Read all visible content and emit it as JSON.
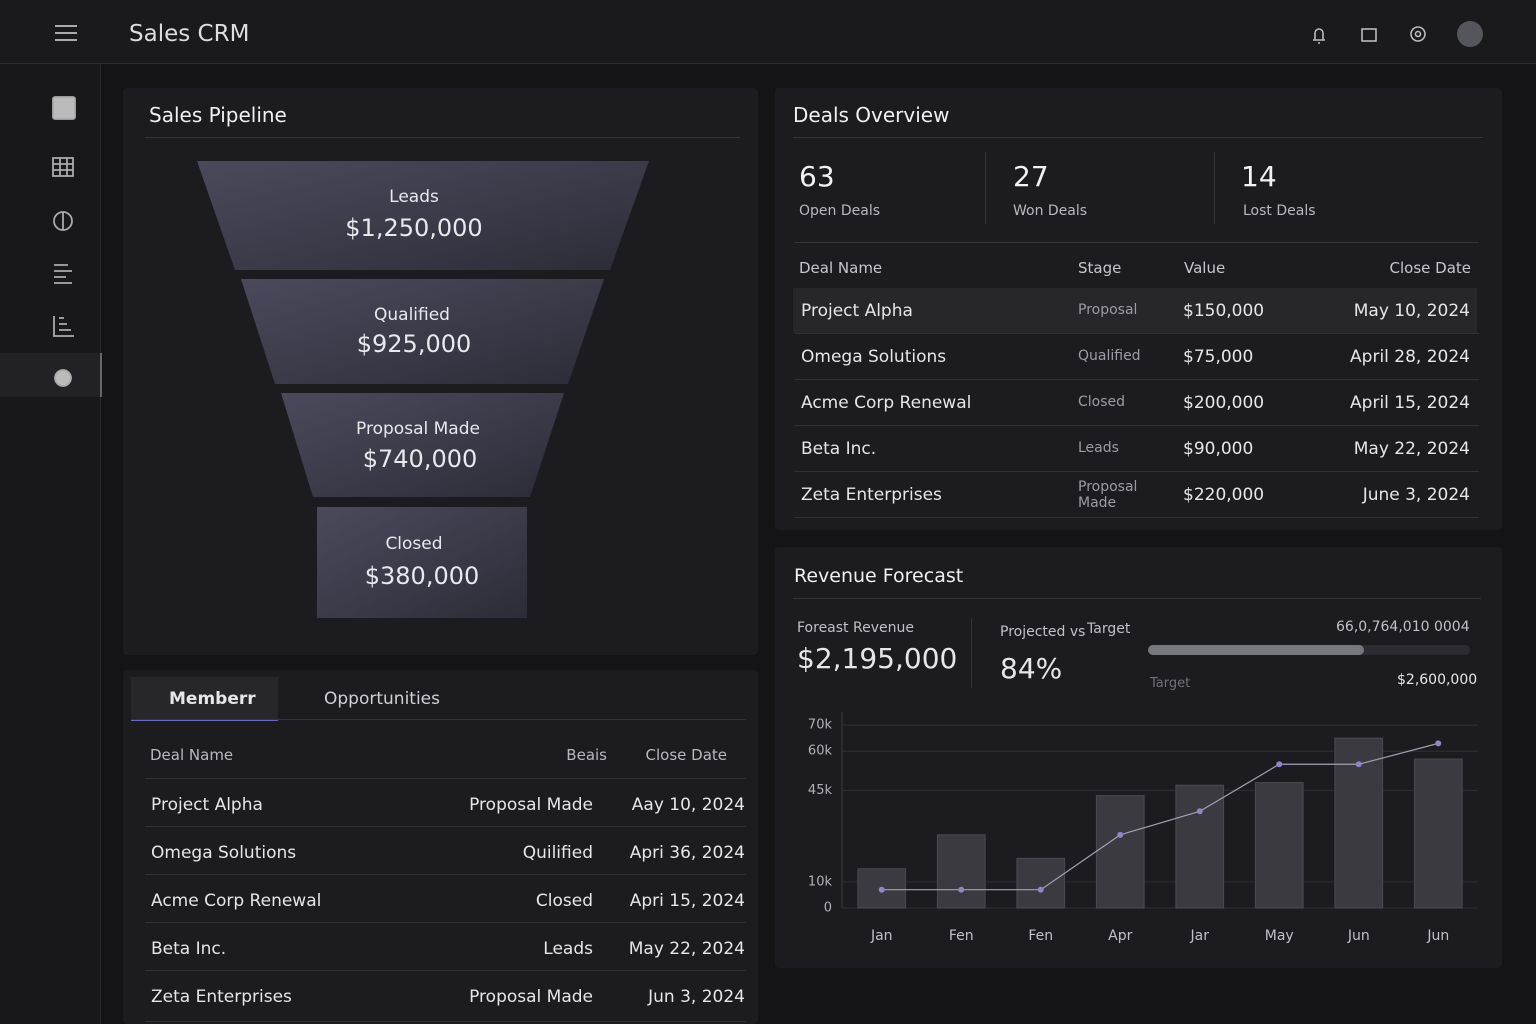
{
  "header": {
    "title": "Sales CRM"
  },
  "pipeline": {
    "title": "Sales Pipeline",
    "stages": [
      {
        "label": "Leads",
        "value": "$1,250,000"
      },
      {
        "label": "Qualified",
        "value": "$925,000"
      },
      {
        "label": "Proposal Made",
        "value": "$740,000"
      },
      {
        "label": "Closed",
        "value": "$380,000"
      }
    ]
  },
  "deals": {
    "title": "Deals Overview",
    "stats": [
      {
        "value": "63",
        "label": "Open Deals"
      },
      {
        "value": "27",
        "label": "Won Deals"
      },
      {
        "value": "14",
        "label": "Lost Deals"
      }
    ],
    "columns": [
      "Deal Name",
      "Stage",
      "Value",
      "Close Date"
    ],
    "rows": [
      [
        "Project Alpha",
        "Proposal",
        "$150,000",
        "May 10, 2024"
      ],
      [
        "Omega Solutions",
        "Qualified",
        "$75,000",
        "April 28, 2024"
      ],
      [
        "Acme Corp Renewal",
        "Closed",
        "$200,000",
        "April 15, 2024"
      ],
      [
        "Beta Inc.",
        "Leads",
        "$90,000",
        "May 22, 2024"
      ],
      [
        "Zeta Enterprises",
        "Proposal Made",
        "$220,000",
        "June 3, 2024"
      ]
    ]
  },
  "forecast": {
    "title": "Revenue Forecast",
    "revenue_label": "Foreast Revenue",
    "revenue": "$2,195,000",
    "projected_label": "Projected vs",
    "target_label": "Target",
    "projected": "84%",
    "progress_note": "66,0,764,010 0004",
    "progress_target_label": "Target",
    "target": "$2,600,000",
    "chart_data": {
      "type": "bar",
      "categories": [
        "Jan",
        "Fen",
        "Fen",
        "Apr",
        "Jar",
        "May",
        "Jun",
        "Jun"
      ],
      "series": [
        {
          "color": "#3a3a40",
          "values": [
            15,
            28,
            19,
            43,
            47,
            48,
            65,
            57
          ]
        },
        {
          "color": "#8c88c8",
          "values": [
            7,
            7,
            7,
            28,
            37,
            55,
            55,
            63
          ]
        }
      ],
      "ylim": [
        0,
        75
      ],
      "yticks": [
        {
          "value": 0,
          "label": "0"
        },
        {
          "value": 10,
          "label": "10k"
        },
        {
          "value": 45,
          "label": "45k"
        },
        {
          "value": 60,
          "label": "60k"
        },
        {
          "value": 70,
          "label": "70k"
        }
      ],
      "grid": true
    }
  },
  "opportunities": {
    "tabs": [
      "Memberr",
      "Opportunities"
    ],
    "columns": [
      "Deal Name",
      "Beais",
      "Close Date"
    ],
    "rows": [
      [
        "Project Alpha",
        "Proposal Made",
        "Aay 10, 2024"
      ],
      [
        "Omega Solutions",
        "Quilified",
        "Apri 36, 2024"
      ],
      [
        "Acme Corp Renewal",
        "Closed",
        "Apri 15, 2024"
      ],
      [
        "Beta Inc.",
        "Leads",
        "May 22, 2024"
      ],
      [
        "Zeta Enterprises",
        "Proposal Made",
        "Jun 3, 2024"
      ]
    ]
  }
}
